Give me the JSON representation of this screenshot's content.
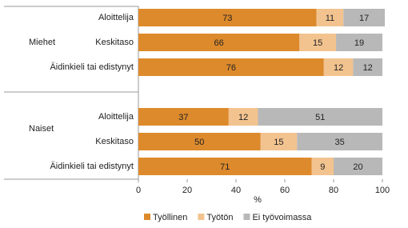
{
  "chart_data": {
    "type": "stacked-bar-horizontal",
    "groups": [
      "Miehet",
      "Naiset"
    ],
    "categories": [
      "Aloittelija",
      "Keskitaso",
      "Äidinkieli tai edistynyt",
      "Aloittelija",
      "Keskitaso",
      "Äidinkieli tai edistynyt"
    ],
    "series": [
      {
        "name": "Työllinen",
        "color": "#dd8a2c",
        "values": [
          73,
          66,
          76,
          37,
          50,
          71
        ]
      },
      {
        "name": "Työtön",
        "color": "#f2c38f",
        "values": [
          11,
          15,
          12,
          12,
          15,
          9
        ]
      },
      {
        "name": "Ei työvoimassa",
        "color": "#b8b8b8",
        "values": [
          17,
          19,
          12,
          51,
          35,
          20
        ]
      }
    ],
    "xlabel": "%",
    "xlim": [
      0,
      100
    ],
    "xticks": [
      0,
      20,
      40,
      60,
      80,
      100
    ]
  }
}
